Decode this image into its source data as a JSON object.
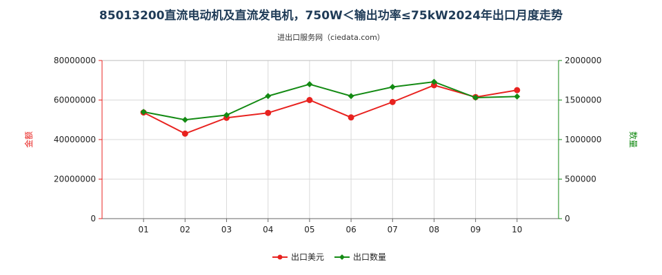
{
  "chart_data": {
    "type": "line",
    "title": "85013200直流电动机及直流发电机，750W＜输出功率≤75kW2024年出口月度走势",
    "subtitle": "进出口服务网（ciedata.com）",
    "categories": [
      "01",
      "02",
      "03",
      "04",
      "05",
      "06",
      "07",
      "08",
      "09",
      "10"
    ],
    "y_left": {
      "label": "金额",
      "ticks": [
        "0",
        "20000000",
        "40000000",
        "60000000",
        "80000000"
      ],
      "range": [
        0,
        80000000
      ],
      "color": "#e8221f"
    },
    "y_right": {
      "label": "数量",
      "ticks": [
        "0",
        "500000",
        "1000000",
        "1500000",
        "2000000"
      ],
      "range": [
        0,
        2000000
      ],
      "color": "#138a13"
    },
    "series": [
      {
        "name": "出口美元",
        "axis": "left",
        "color": "#e8221f",
        "values": [
          53700000,
          43000000,
          51000000,
          53500000,
          60000000,
          51200000,
          59000000,
          67500000,
          61500000,
          65000000
        ]
      },
      {
        "name": "出口数量",
        "axis": "right",
        "color": "#138a13",
        "values": [
          1350000,
          1250000,
          1310000,
          1550000,
          1700000,
          1550000,
          1665000,
          1730000,
          1530000,
          1545000
        ]
      }
    ],
    "grid": true,
    "legend_position": "bottom-center"
  }
}
